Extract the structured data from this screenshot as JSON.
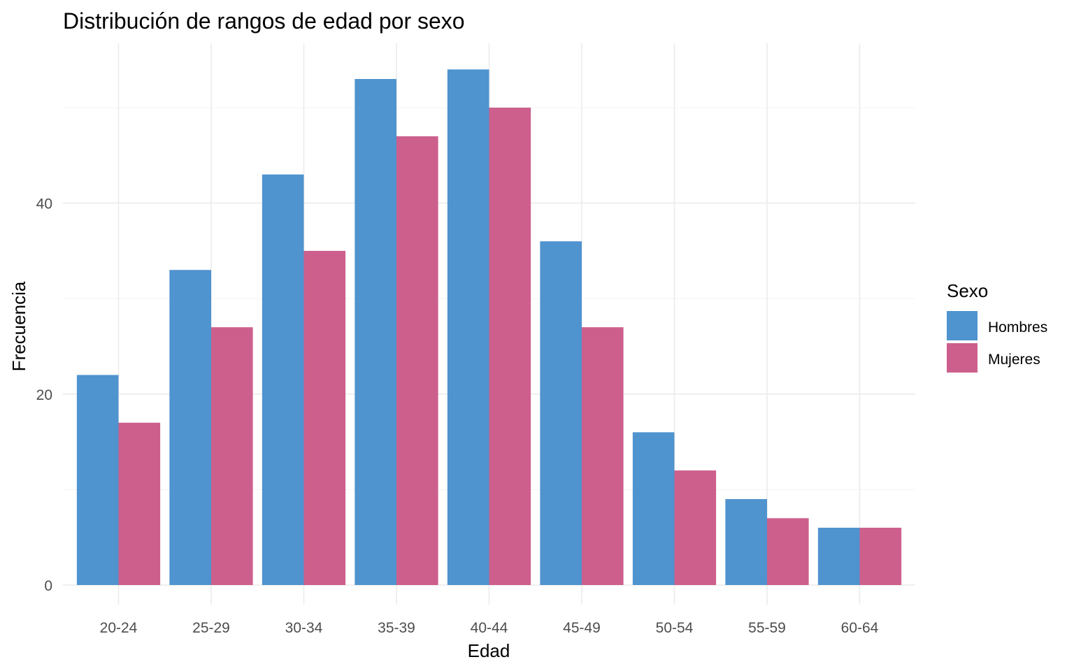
{
  "chart_data": {
    "type": "bar",
    "title": "Distribución de rangos de edad por sexo",
    "xlabel": "Edad",
    "ylabel": "Frecuencia",
    "categories": [
      "20-24",
      "25-29",
      "30-34",
      "35-39",
      "40-44",
      "45-49",
      "50-54",
      "55-59",
      "60-64"
    ],
    "series": [
      {
        "name": "Hombres",
        "color": "#4f93cf",
        "values": [
          22,
          33,
          43,
          53,
          54,
          36,
          16,
          9,
          6
        ]
      },
      {
        "name": "Mujeres",
        "color": "#cd5f8d",
        "values": [
          17,
          27,
          35,
          47,
          50,
          27,
          12,
          7,
          6
        ]
      }
    ],
    "ylim": [
      0,
      57
    ],
    "yticks": [
      0,
      20,
      40
    ],
    "grid": true,
    "legend": {
      "title": "Sexo",
      "position": "right"
    }
  }
}
